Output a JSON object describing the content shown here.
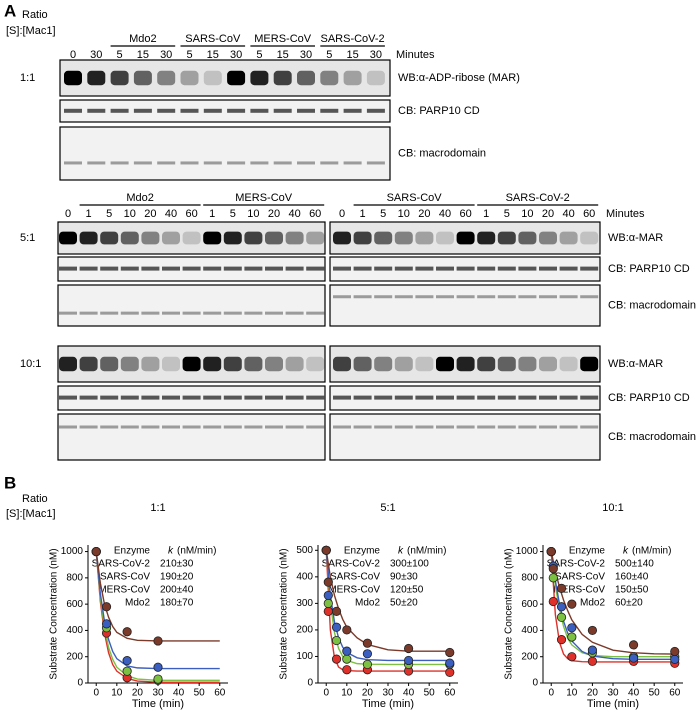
{
  "panel_a": {
    "label": "A",
    "ratio_title": [
      "Ratio",
      "[S]:[Mac1]"
    ],
    "top": {
      "ratio": "1:1",
      "unlabeled_times": [
        0,
        30
      ],
      "groups": [
        {
          "name": "Mdo2",
          "times": [
            5,
            15,
            30
          ]
        },
        {
          "name": "SARS-CoV",
          "times": [
            5,
            15,
            30
          ]
        },
        {
          "name": "MERS-CoV",
          "times": [
            5,
            15,
            30
          ]
        },
        {
          "name": "SARS-CoV-2",
          "times": [
            5,
            15,
            30
          ]
        }
      ],
      "minutes": "Minutes",
      "blots": [
        "WB:α-ADP-ribose (MAR)",
        "CB: PARP10 CD",
        "CB: macrodomain"
      ]
    },
    "bottom": {
      "minutes": "Minutes",
      "left": {
        "start": 0,
        "groups": [
          {
            "name": "Mdo2",
            "times": [
              1,
              5,
              10,
              20,
              40,
              60
            ]
          },
          {
            "name": "MERS-CoV",
            "times": [
              1,
              5,
              10,
              20,
              40,
              60
            ]
          }
        ]
      },
      "right": {
        "start": 0,
        "groups": [
          {
            "name": "SARS-CoV",
            "times": [
              1,
              5,
              10,
              20,
              40,
              60
            ]
          },
          {
            "name": "SARS-CoV-2",
            "times": [
              1,
              5,
              10,
              20,
              40,
              60
            ]
          }
        ]
      },
      "rows": [
        {
          "ratio": "5:1",
          "blots": [
            "WB:α-MAR",
            "CB: PARP10 CD",
            "CB: macrodomain"
          ]
        },
        {
          "ratio": "10:1",
          "blots": [
            "WB:α-MAR",
            "CB: PARP10 CD",
            "CB: macrodomain"
          ]
        }
      ]
    }
  },
  "panel_b": {
    "label": "B",
    "ratio_title": [
      "Ratio",
      "[S]:[Mac1]"
    ]
  },
  "chart_data": [
    {
      "type": "scatter",
      "title": "1:1",
      "ylabel": "Substrate Concentration (nM)",
      "xlabel": "Time (min)",
      "x": [
        0,
        5,
        15,
        30
      ],
      "xlim": [
        -4,
        64
      ],
      "xticks": [
        0,
        10,
        20,
        30,
        40,
        50,
        60
      ],
      "ylim": [
        0,
        1050
      ],
      "yticks": [
        0,
        200,
        400,
        600,
        800,
        1000
      ],
      "legend_header": {
        "enzyme": "Enzyme",
        "k": "k",
        "unit": "(nM/min)"
      },
      "fit_x": [
        0,
        2,
        4,
        6,
        8,
        10,
        15,
        20,
        30,
        40,
        50,
        60
      ],
      "series": [
        {
          "name": "SARS-CoV-2",
          "color": "#e0302a",
          "rate": "210±30",
          "values": [
            1000,
            380,
            40,
            20
          ],
          "fit_values": [
            1000,
            620,
            380,
            230,
            140,
            90,
            35,
            15,
            5,
            5,
            5,
            5
          ]
        },
        {
          "name": "SARS-CoV",
          "color": "#7cc142",
          "rate": "190±20",
          "values": [
            1000,
            420,
            90,
            30
          ],
          "fit_values": [
            1000,
            650,
            420,
            270,
            180,
            120,
            55,
            30,
            20,
            20,
            20,
            20
          ]
        },
        {
          "name": "MERS-CoV",
          "color": "#3b5fc0",
          "rate": "200±40",
          "values": [
            1000,
            450,
            170,
            120
          ],
          "fit_values": [
            1000,
            680,
            470,
            330,
            240,
            185,
            130,
            115,
            110,
            110,
            110,
            110
          ]
        },
        {
          "name": "Mdo2",
          "color": "#7b3a2a",
          "rate": "180±70",
          "values": [
            1000,
            580,
            390,
            320
          ],
          "fit_values": [
            1000,
            760,
            600,
            500,
            430,
            385,
            340,
            325,
            320,
            320,
            320,
            320
          ]
        }
      ]
    },
    {
      "type": "scatter",
      "title": "5:1",
      "ylabel": "Substrate Concentration (nM)",
      "xlabel": "Time (min)",
      "x": [
        0,
        1,
        5,
        10,
        20,
        40,
        60
      ],
      "xlim": [
        -4,
        64
      ],
      "xticks": [
        0,
        10,
        20,
        30,
        40,
        50,
        60
      ],
      "ylim": [
        0,
        520
      ],
      "yticks": [
        0,
        100,
        200,
        300,
        400,
        500
      ],
      "legend_header": {
        "enzyme": "Enzyme",
        "k": "k",
        "unit": "(nM/min)"
      },
      "fit_x": [
        0,
        2,
        4,
        6,
        8,
        10,
        15,
        20,
        30,
        40,
        50,
        60
      ],
      "series": [
        {
          "name": "SARS-CoV-2",
          "color": "#e0302a",
          "rate": "300±100",
          "values": [
            500,
            270,
            90,
            50,
            50,
            45,
            40
          ],
          "fit_values": [
            500,
            200,
            95,
            60,
            50,
            47,
            45,
            45,
            45,
            45,
            45,
            45
          ]
        },
        {
          "name": "SARS-CoV",
          "color": "#7cc142",
          "rate": "90±30",
          "values": [
            500,
            300,
            160,
            90,
            70,
            70,
            70
          ],
          "fit_values": [
            500,
            300,
            190,
            130,
            100,
            85,
            73,
            71,
            70,
            70,
            70,
            70
          ]
        },
        {
          "name": "MERS-CoV",
          "color": "#3b5fc0",
          "rate": "120±50",
          "values": [
            500,
            330,
            210,
            120,
            110,
            85,
            75
          ],
          "fit_values": [
            500,
            330,
            230,
            170,
            135,
            115,
            95,
            88,
            85,
            85,
            85,
            85
          ]
        },
        {
          "name": "Mdo2",
          "color": "#7b3a2a",
          "rate": "50±20",
          "values": [
            500,
            380,
            270,
            200,
            150,
            130,
            115
          ],
          "fit_values": [
            500,
            400,
            330,
            280,
            240,
            210,
            170,
            145,
            125,
            120,
            120,
            120
          ]
        }
      ]
    },
    {
      "type": "scatter",
      "title": "10:1",
      "ylabel": "Substrate Concentration (nM)",
      "xlabel": "Time (min)",
      "x": [
        0,
        1,
        5,
        10,
        20,
        40,
        60
      ],
      "xlim": [
        -4,
        64
      ],
      "xticks": [
        0,
        10,
        20,
        30,
        40,
        50,
        60
      ],
      "ylim": [
        0,
        1050
      ],
      "yticks": [
        0,
        200,
        400,
        600,
        800,
        1000
      ],
      "legend_header": {
        "enzyme": "Enzyme",
        "k": "k",
        "unit": "(nM/min)"
      },
      "fit_x": [
        0,
        2,
        4,
        6,
        8,
        10,
        15,
        20,
        30,
        40,
        50,
        60
      ],
      "series": [
        {
          "name": "SARS-CoV-2",
          "color": "#e0302a",
          "rate": "500±140",
          "values": [
            1000,
            620,
            330,
            200,
            165,
            165,
            150
          ],
          "fit_values": [
            1000,
            520,
            310,
            220,
            185,
            170,
            162,
            160,
            160,
            160,
            160,
            160
          ]
        },
        {
          "name": "SARS-CoV",
          "color": "#7cc142",
          "rate": "160±40",
          "values": [
            1000,
            800,
            500,
            350,
            230,
            200,
            200
          ],
          "fit_values": [
            1000,
            740,
            560,
            430,
            340,
            290,
            230,
            210,
            200,
            200,
            200,
            200
          ]
        },
        {
          "name": "MERS-CoV",
          "color": "#3b5fc0",
          "rate": "150±50",
          "values": [
            1000,
            890,
            580,
            420,
            250,
            190,
            180
          ],
          "fit_values": [
            1000,
            780,
            600,
            470,
            380,
            320,
            240,
            205,
            185,
            180,
            180,
            180
          ]
        },
        {
          "name": "Mdo2",
          "color": "#7b3a2a",
          "rate": "60±20",
          "values": [
            1000,
            870,
            720,
            600,
            400,
            290,
            240
          ],
          "fit_values": [
            1000,
            850,
            730,
            630,
            550,
            480,
            370,
            310,
            250,
            230,
            222,
            220
          ]
        }
      ]
    }
  ]
}
